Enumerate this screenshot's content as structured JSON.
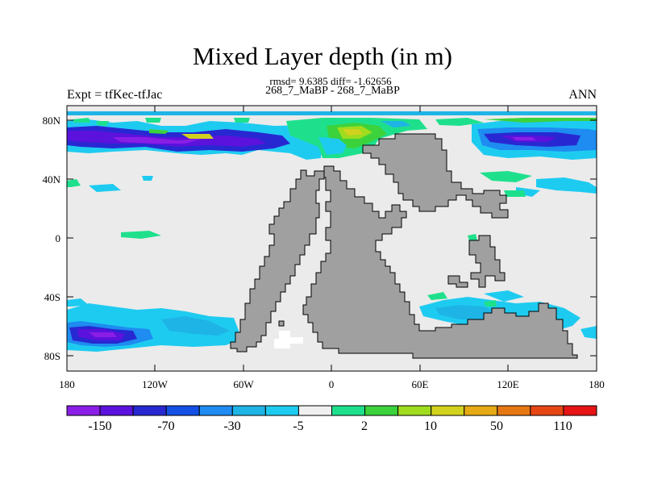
{
  "title": "Mixed Layer depth (in m)",
  "stats_line": "rmsd= 9.6385 diff= -1.62656",
  "experiment_line": "268_7_MaBP - 268_7_MaBP",
  "left_string": "Expt = tfKec-tfJac",
  "right_string": "ANN",
  "axes": {
    "lon_ticks": [
      "180",
      "120W",
      "60W",
      "0",
      "60E",
      "120E",
      "180"
    ],
    "lat_ticks": [
      "80N",
      "40N",
      "0",
      "40S",
      "80S"
    ]
  },
  "colorbar": {
    "colors": [
      "#8a1ee6",
      "#5a12dc",
      "#2828d2",
      "#1450e6",
      "#1e8cf0",
      "#1eb4e6",
      "#1ecbf0",
      "#f0f0f0",
      "#1ee08c",
      "#3cd23c",
      "#a0dc1e",
      "#d2d21e",
      "#e6aa14",
      "#e67814",
      "#e64614",
      "#e61414"
    ],
    "labels": [
      "-150",
      "-70",
      "-30",
      "-5",
      "2",
      "10",
      "50",
      "110"
    ],
    "land_color": "#a0a0a0",
    "missing_fill": "#ebebeb"
  }
}
